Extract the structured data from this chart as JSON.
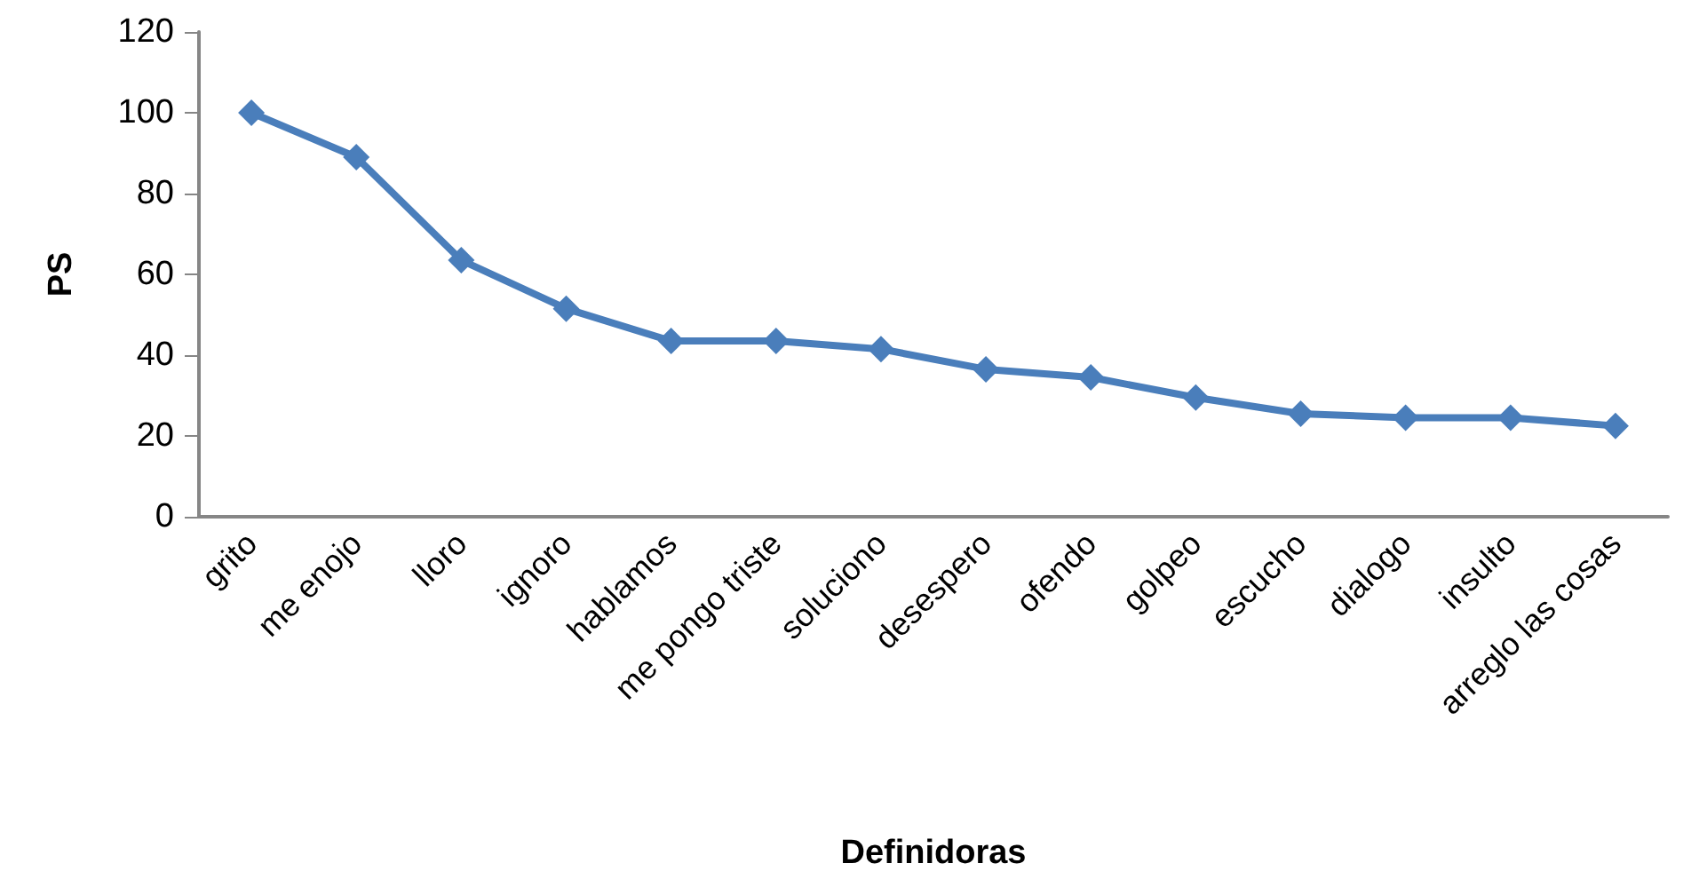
{
  "chart_data": {
    "type": "line",
    "xlabel": "Definidoras",
    "ylabel": "PS",
    "categories": [
      "grito",
      "me enojo",
      "lloro",
      "ignoro",
      "hablamos",
      "me pongo triste",
      "soluciono",
      "desespero",
      "ofendo",
      "golpeo",
      "escucho",
      "dialogo",
      "insulto",
      "arreglo las cosas"
    ],
    "series": [
      {
        "color": "#4a7ebb",
        "values": [
          100,
          89,
          63.5,
          51.5,
          43.5,
          43.5,
          41.5,
          36.5,
          34.5,
          29.5,
          25.5,
          24.5,
          24.5,
          22.5
        ]
      }
    ],
    "ylim": [
      0,
      120
    ],
    "yticks": [
      0,
      20,
      40,
      60,
      80,
      100,
      120
    ],
    "grid": false,
    "marker": "diamond",
    "line_style": "solid"
  }
}
